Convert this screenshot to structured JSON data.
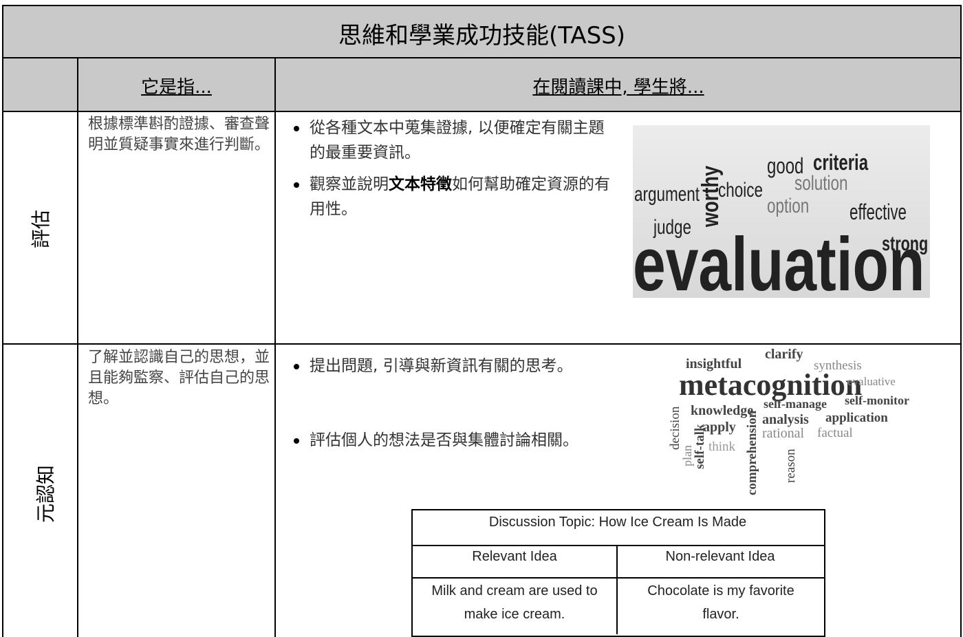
{
  "header": {
    "title": "思維和學業成功技能(TASS)"
  },
  "columns": [
    "它是指...",
    "在閱讀課中, 學生將..."
  ],
  "rows": [
    {
      "label": "評估",
      "definition": "根據標準斟酌證據、審查聲明並質疑事實來進行判斷。",
      "bullets": [
        [
          {
            "text": "從各種文本中蒐集證據, 以便確定有關主題的最重要資訊。"
          }
        ],
        [
          {
            "text": "觀察並說明"
          },
          {
            "text": "文本特徵",
            "bold": true
          },
          {
            "text": "如何幫助確定資源的有用性。"
          }
        ]
      ],
      "word_cloud": [
        "worthy",
        "good",
        "criteria",
        "solution",
        "argument",
        "choice",
        "option",
        "effective",
        "judge",
        "evaluation",
        "strong"
      ]
    },
    {
      "label": "元認知",
      "definition": "了解並認識自己的思想，並且能夠監察、評估自己的思想。",
      "bullets": [
        [
          {
            "text": "提出問題, 引導與新資訊有關的思考。"
          }
        ],
        [
          {
            "text": "評估個人的想法是否與集體討論相關。"
          }
        ]
      ],
      "word_cloud": [
        "insightful",
        "clarify",
        "synthesis",
        "metacognition",
        "evaluative",
        "knowledge",
        "self-manage",
        "self-monitor",
        "analysis",
        "application",
        "apply",
        "rational",
        "factual",
        "think",
        "decision",
        "plan",
        "self-talk",
        "comprehension",
        "reason"
      ]
    }
  ],
  "discussion_table": {
    "title": "Discussion Topic: How Ice Cream Is Made",
    "headers": [
      "Relevant Idea",
      "Non-relevant Idea"
    ],
    "cells": [
      "Milk and cream are used to make ice cream.",
      "Chocolate is my favorite flavor."
    ]
  }
}
